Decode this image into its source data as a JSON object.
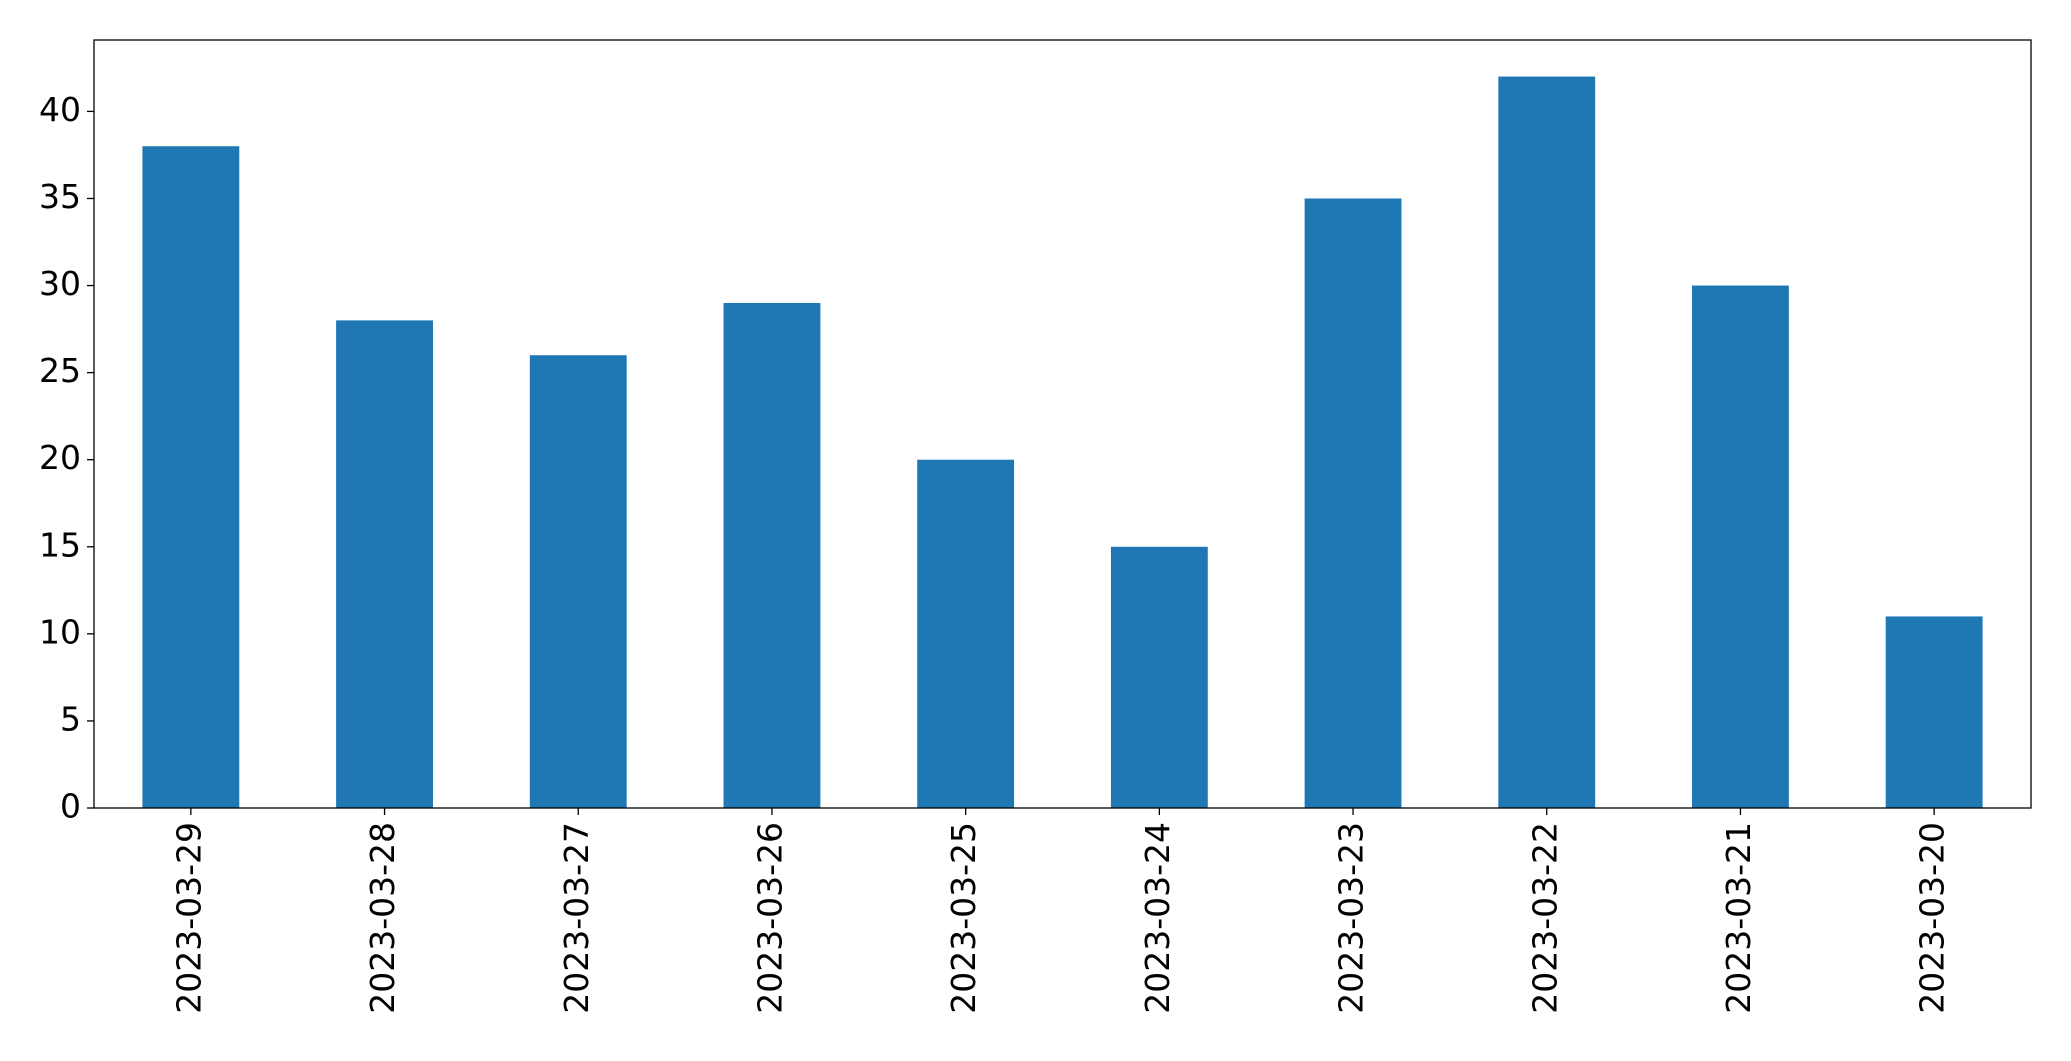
{
  "chart_data": {
    "type": "bar",
    "categories": [
      "2023-03-29",
      "2023-03-28",
      "2023-03-27",
      "2023-03-26",
      "2023-03-25",
      "2023-03-24",
      "2023-03-23",
      "2023-03-22",
      "2023-03-21",
      "2023-03-20"
    ],
    "values": [
      38,
      28,
      26,
      29,
      20,
      15,
      35,
      42,
      30,
      11
    ],
    "color": "#1f77b4",
    "ylim": [
      0,
      44.1
    ],
    "yticks": [
      0,
      5,
      10,
      15,
      20,
      25,
      30,
      35,
      40
    ]
  }
}
